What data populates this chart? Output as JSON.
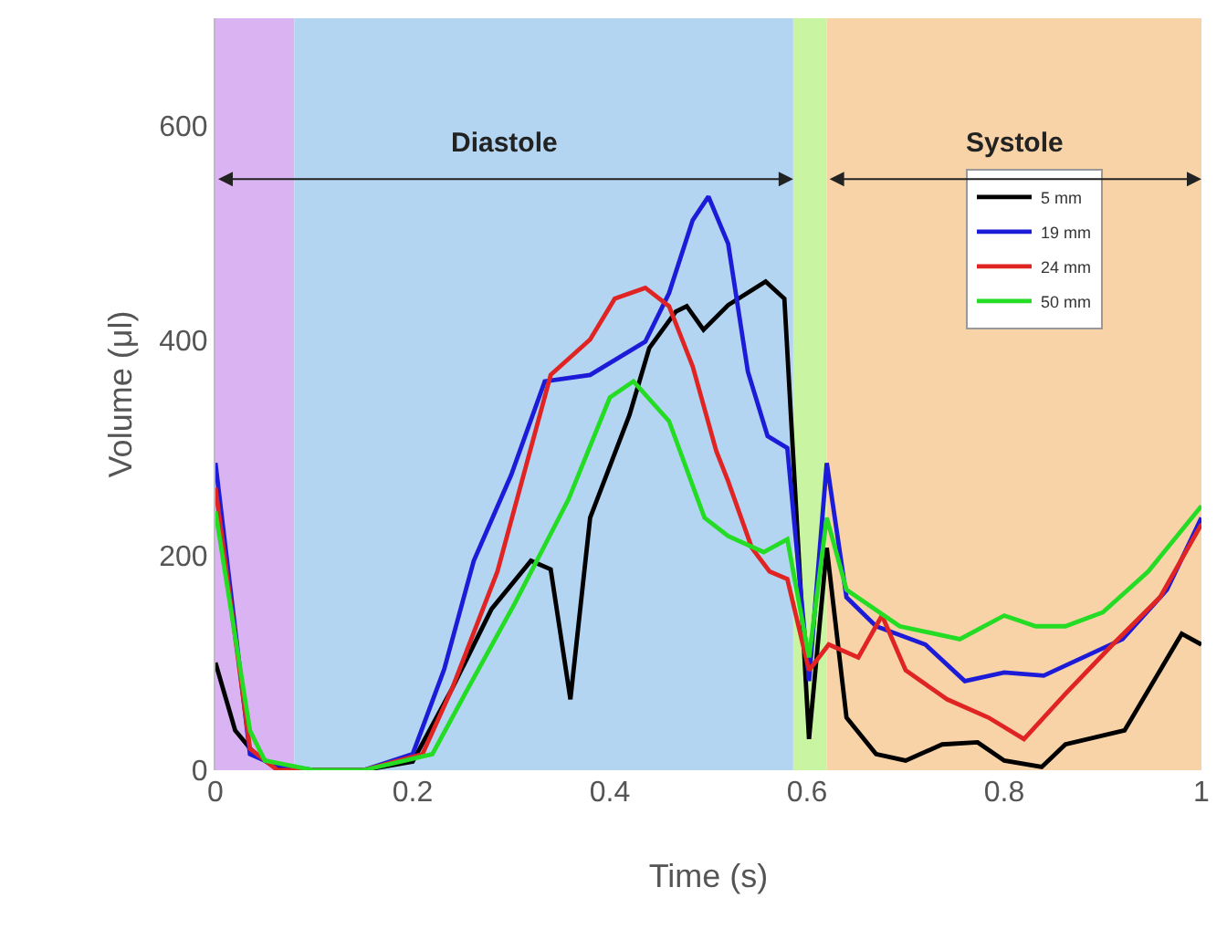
{
  "chart_data": {
    "type": "line",
    "xlabel": "Time (s)",
    "ylabel": "Volume (μl)",
    "xlim": [
      0,
      1
    ],
    "xticks": [
      0,
      0.2,
      0.4,
      0.6,
      0.8,
      1
    ],
    "ylim": [
      0,
      700
    ],
    "yticks": [
      0,
      200,
      400,
      600
    ],
    "grid": false,
    "legend": "top right",
    "marker": "none",
    "line_style": "solid",
    "annotations": [
      "Diastole",
      "Systole"
    ],
    "bands": [
      {
        "axis": "x",
        "from": 0,
        "to": 0.08,
        "color": "#d9b3f2"
      },
      {
        "axis": "x",
        "from": 0.08,
        "to": 0.586,
        "color": "#b3d5f2"
      },
      {
        "axis": "x",
        "from": 0.586,
        "to": 0.62,
        "color": "#c9f5a3"
      },
      {
        "axis": "x",
        "from": 0.62,
        "to": 1,
        "color": "#f9d3a8"
      }
    ],
    "series": [
      {
        "name": "5 mm",
        "color": "#000000",
        "x": [
          0,
          0.02,
          0.04,
          0.06,
          0.1,
          0.15,
          0.2,
          0.24,
          0.28,
          0.32,
          0.34,
          0.36,
          0.38,
          0.42,
          0.44,
          0.467,
          0.478,
          0.495,
          0.52,
          0.558,
          0.577,
          0.602,
          0.62,
          0.64,
          0.67,
          0.7,
          0.737,
          0.773,
          0.8,
          0.838,
          0.862,
          0.922,
          0.98,
          1
        ],
        "values": [
          100,
          37,
          15,
          3,
          0,
          0,
          8,
          76,
          150,
          195,
          187,
          66,
          235,
          331,
          393,
          427,
          432,
          410,
          433,
          455,
          439,
          29,
          207,
          49,
          15,
          9,
          24,
          26,
          9,
          3,
          24,
          37,
          127,
          117
        ]
      },
      {
        "name": "19 mm",
        "color": "#1c1cd8",
        "x": [
          0,
          0.035,
          0.06,
          0.1,
          0.15,
          0.2,
          0.232,
          0.262,
          0.3,
          0.334,
          0.38,
          0.436,
          0.46,
          0.484,
          0.5,
          0.52,
          0.54,
          0.56,
          0.58,
          0.602,
          0.62,
          0.64,
          0.67,
          0.72,
          0.76,
          0.8,
          0.84,
          0.88,
          0.92,
          0.965,
          1
        ],
        "values": [
          286,
          15,
          5,
          0,
          0,
          15,
          94,
          195,
          275,
          362,
          368,
          399,
          444,
          512,
          534,
          490,
          371,
          311,
          300,
          83,
          286,
          161,
          134,
          117,
          83,
          91,
          88,
          105,
          122,
          168,
          235
        ]
      },
      {
        "name": "24 mm",
        "color": "#e02424",
        "x": [
          0,
          0.035,
          0.063,
          0.1,
          0.15,
          0.21,
          0.24,
          0.286,
          0.34,
          0.38,
          0.405,
          0.436,
          0.46,
          0.484,
          0.508,
          0.52,
          0.544,
          0.562,
          0.58,
          0.602,
          0.622,
          0.652,
          0.676,
          0.7,
          0.742,
          0.784,
          0.82,
          0.862,
          0.91,
          0.958,
          1
        ],
        "values": [
          263,
          20,
          0,
          0,
          0,
          15,
          76,
          185,
          368,
          401,
          439,
          449,
          432,
          376,
          297,
          269,
          207,
          185,
          178,
          93,
          117,
          105,
          144,
          93,
          66,
          49,
          29,
          71,
          117,
          161,
          229
        ]
      },
      {
        "name": "50 mm",
        "color": "#24dc24",
        "x": [
          0,
          0.035,
          0.05,
          0.1,
          0.15,
          0.22,
          0.256,
          0.304,
          0.358,
          0.4,
          0.424,
          0.46,
          0.496,
          0.52,
          0.556,
          0.58,
          0.602,
          0.62,
          0.64,
          0.694,
          0.755,
          0.8,
          0.832,
          0.862,
          0.9,
          0.946,
          1
        ],
        "values": [
          241,
          37,
          9,
          0,
          0,
          15,
          76,
          156,
          252,
          347,
          362,
          325,
          235,
          218,
          203,
          215,
          105,
          235,
          168,
          134,
          122,
          144,
          134,
          134,
          147,
          185,
          246
        ]
      }
    ]
  }
}
